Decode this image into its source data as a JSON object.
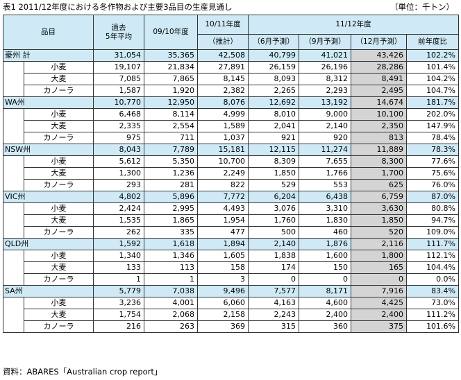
{
  "title": {
    "text": "表1  2011/12年度における冬作物および主要3品目の生産見通し",
    "unit": "（単位：千トン）"
  },
  "header": {
    "item": "品目",
    "avg_line1": "過去",
    "avg_line2": "5年平均",
    "y0910": "09/10年度",
    "y1011_line1": "10/11年度",
    "y1011_line2": "（推計）",
    "group_1112": "11/12年度",
    "jun": "（6月予測）",
    "sep": "（9月予測）",
    "dec": "（12月予測）",
    "yoy": "前年度比"
  },
  "regions": [
    {
      "name": "豪州  計",
      "total": [
        "31,054",
        "35,365",
        "42,508",
        "40,799",
        "41,021",
        "43,426",
        "102.2%"
      ],
      "crops": [
        {
          "name": "小麦",
          "values": [
            "19,107",
            "21,834",
            "27,891",
            "26,159",
            "26,196",
            "28,286",
            "101.4%"
          ]
        },
        {
          "name": "大麦",
          "values": [
            "7,085",
            "7,865",
            "8,145",
            "8,093",
            "8,312",
            "8,491",
            "104.2%"
          ]
        },
        {
          "name": "カノーラ",
          "values": [
            "1,587",
            "1,920",
            "2,382",
            "2,265",
            "2,293",
            "2,495",
            "104.7%"
          ]
        }
      ]
    },
    {
      "name": "WA州",
      "total": [
        "10,770",
        "12,950",
        "8,076",
        "12,692",
        "13,192",
        "14,674",
        "181.7%"
      ],
      "crops": [
        {
          "name": "小麦",
          "values": [
            "6,468",
            "8,114",
            "4,999",
            "8,010",
            "9,000",
            "10,100",
            "202.0%"
          ]
        },
        {
          "name": "大麦",
          "values": [
            "2,335",
            "2,554",
            "1,589",
            "2,041",
            "2,140",
            "2,350",
            "147.9%"
          ]
        },
        {
          "name": "カノーラ",
          "values": [
            "975",
            "711",
            "1,037",
            "921",
            "920",
            "813",
            "78.4%"
          ]
        }
      ]
    },
    {
      "name": "NSW州",
      "total": [
        "8,043",
        "7,789",
        "15,181",
        "12,115",
        "11,274",
        "11,889",
        "78.3%"
      ],
      "crops": [
        {
          "name": "小麦",
          "values": [
            "5,612",
            "5,350",
            "10,700",
            "8,309",
            "7,655",
            "8,300",
            "77.6%"
          ]
        },
        {
          "name": "大麦",
          "values": [
            "1,300",
            "1,236",
            "2,249",
            "1,850",
            "1,766",
            "1,700",
            "75.6%"
          ]
        },
        {
          "name": "カノーラ",
          "values": [
            "293",
            "281",
            "822",
            "529",
            "553",
            "625",
            "76.0%"
          ]
        }
      ]
    },
    {
      "name": "VIC州",
      "total": [
        "4,802",
        "5,896",
        "7,772",
        "6,204",
        "6,438",
        "6,759",
        "87.0%"
      ],
      "crops": [
        {
          "name": "小麦",
          "values": [
            "2,424",
            "2,995",
            "4,493",
            "3,076",
            "3,310",
            "3,630",
            "80.8%"
          ]
        },
        {
          "name": "大麦",
          "values": [
            "1,535",
            "1,865",
            "1,954",
            "1,760",
            "1,830",
            "1,850",
            "94.7%"
          ]
        },
        {
          "name": "カノーラ",
          "values": [
            "262",
            "335",
            "477",
            "500",
            "460",
            "520",
            "109.0%"
          ]
        }
      ]
    },
    {
      "name": "QLD州",
      "total": [
        "1,592",
        "1,618",
        "1,894",
        "2,140",
        "1,876",
        "2,116",
        "111.7%"
      ],
      "crops": [
        {
          "name": "小麦",
          "values": [
            "1,340",
            "1,346",
            "1,605",
            "1,838",
            "1,600",
            "1,800",
            "112.1%"
          ]
        },
        {
          "name": "大麦",
          "values": [
            "133",
            "113",
            "158",
            "174",
            "150",
            "165",
            "104.4%"
          ]
        },
        {
          "name": "カノーラ",
          "values": [
            "1",
            "1",
            "3",
            "0",
            "0",
            "0",
            "0.0%"
          ]
        }
      ]
    },
    {
      "name": "SA州",
      "total": [
        "5,779",
        "7,038",
        "9,496",
        "7,577",
        "8,171",
        "7,916",
        "83.4%"
      ],
      "crops": [
        {
          "name": "小麦",
          "values": [
            "3,236",
            "4,001",
            "6,060",
            "4,163",
            "4,600",
            "4,425",
            "73.0%"
          ]
        },
        {
          "name": "大麦",
          "values": [
            "1,754",
            "2,068",
            "2,158",
            "2,243",
            "2,400",
            "2,400",
            "111.2%"
          ]
        },
        {
          "name": "カノーラ",
          "values": [
            "216",
            "263",
            "369",
            "315",
            "360",
            "375",
            "101.6%"
          ]
        }
      ]
    }
  ],
  "source": "資料：ABARES「Australian crop report」",
  "colors": {
    "header_bg": "#cfeaf6",
    "highlight_col_bg": "#d4d4d4"
  }
}
